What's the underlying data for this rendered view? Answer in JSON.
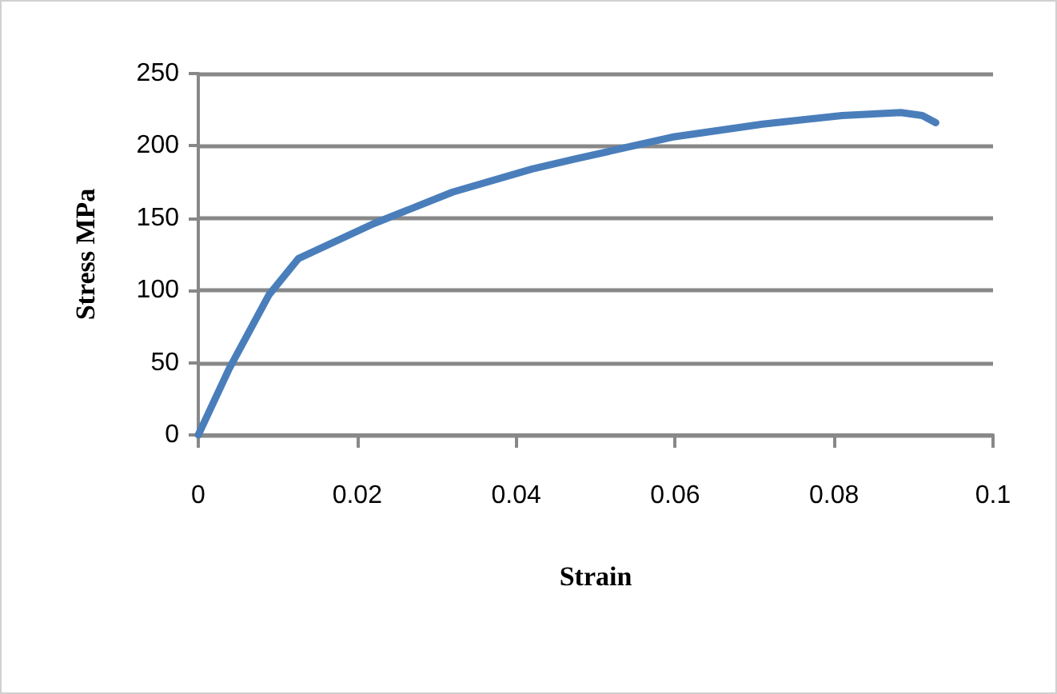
{
  "chart_data": {
    "type": "line",
    "xlabel": "Strain",
    "ylabel": "Stress MPa",
    "series": [
      {
        "color": "#4a7ebb",
        "x": [
          0,
          0.0039,
          0.0089,
          0.0126,
          0.022,
          0.032,
          0.042,
          0.0475,
          0.0596,
          0.071,
          0.081,
          0.0884,
          0.0911,
          0.0928
        ],
        "values": [
          0,
          46,
          97,
          122,
          146,
          168,
          184,
          191,
          206,
          215,
          221,
          223,
          221,
          216
        ]
      }
    ],
    "xlim": [
      0,
      0.1
    ],
    "xticks": [
      0,
      0.02,
      0.04,
      0.06,
      0.08,
      0.1
    ],
    "ylim": [
      0,
      250
    ],
    "yticks": [
      0,
      50,
      100,
      150,
      200,
      250
    ],
    "grid": "y",
    "marker": "none",
    "line_style": "solid"
  }
}
